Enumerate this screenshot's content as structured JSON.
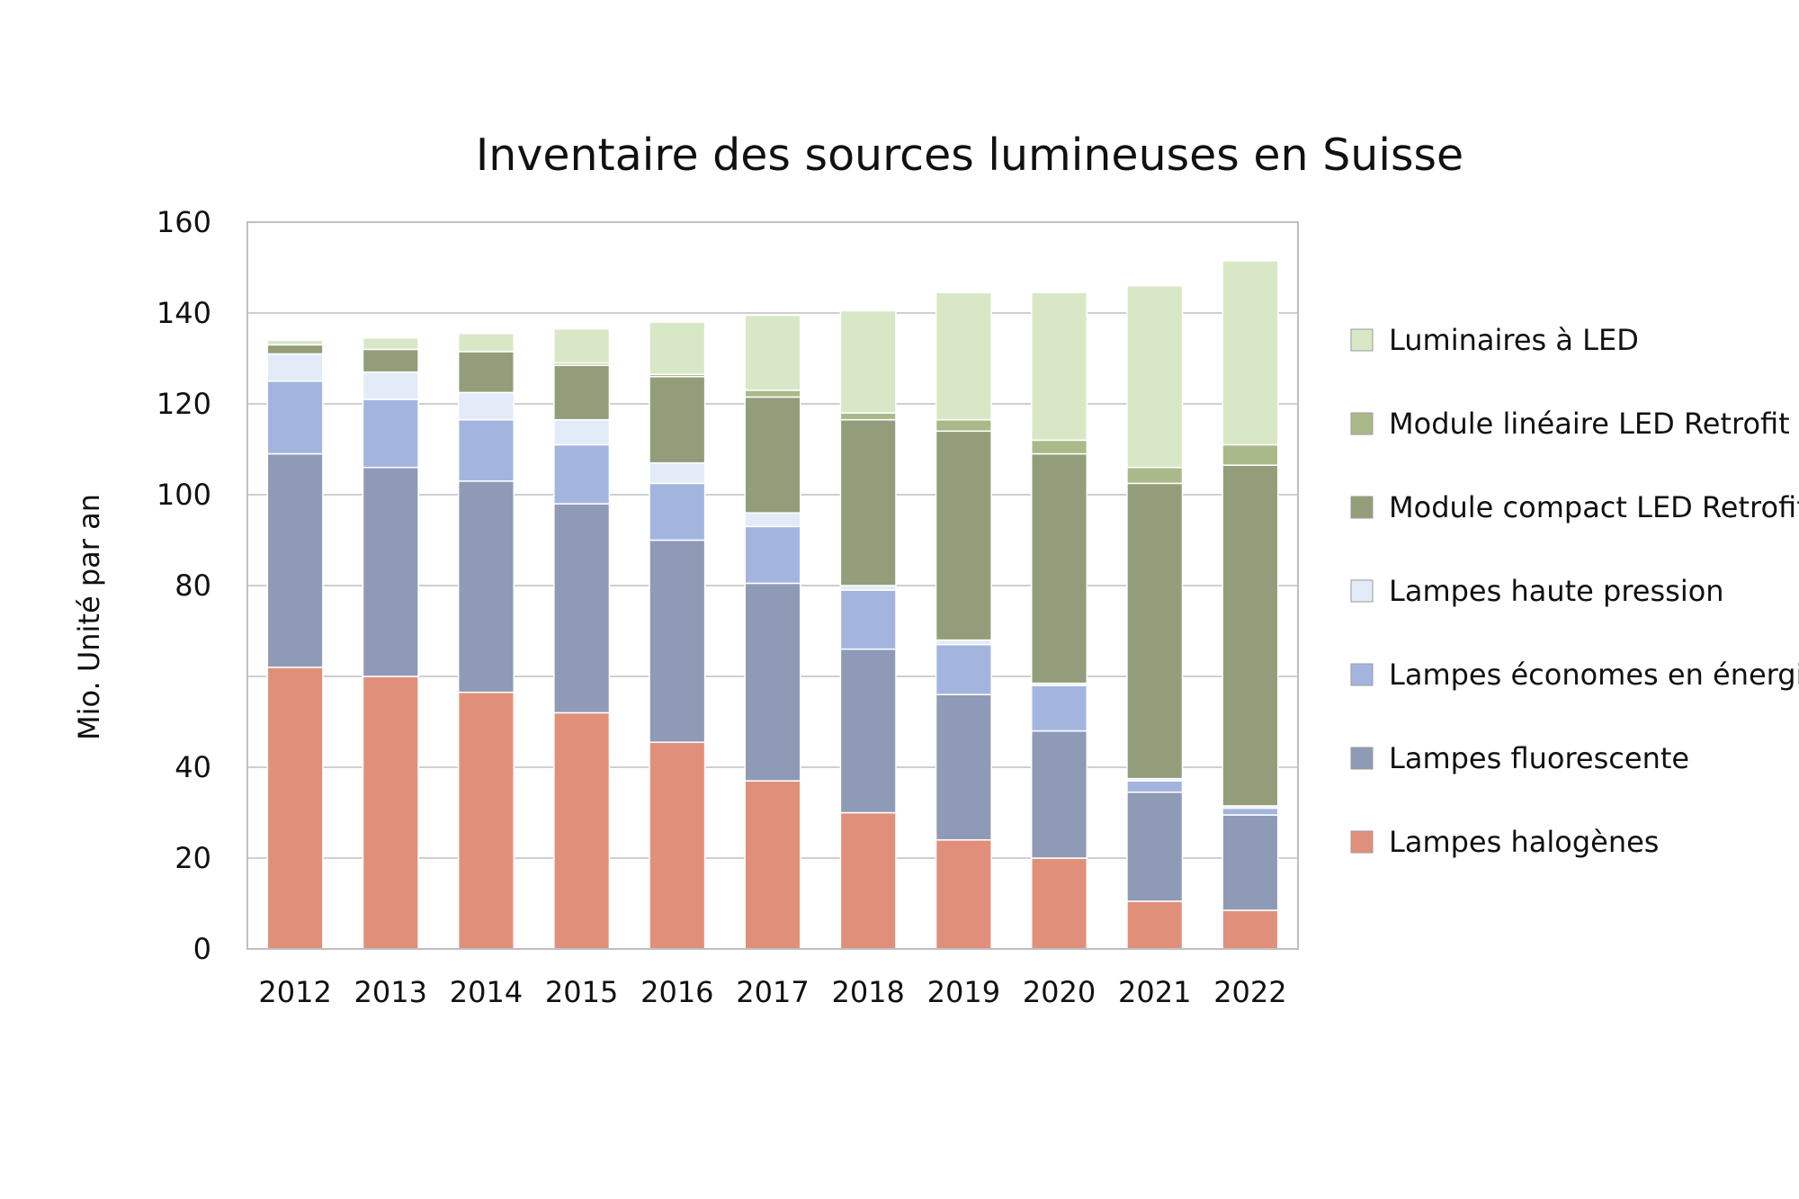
{
  "chart_data": {
    "type": "bar",
    "stacked": true,
    "title": "Inventaire des sources lumineuses en Suisse",
    "xlabel": "",
    "ylabel": "Mio. Unité par an",
    "ylim": [
      0,
      160
    ],
    "yticks": [
      "0",
      "20",
      "40",
      "",
      "80",
      "100",
      "120",
      "140",
      "160"
    ],
    "grid": true,
    "legend_position": "right",
    "categories": [
      "2012",
      "2013",
      "2014",
      "2015",
      "2016",
      "2017",
      "2018",
      "2019",
      "2020",
      "2021",
      "2022"
    ],
    "series": [
      {
        "name": "Lampes halogènes",
        "color": "#e0907a",
        "values": [
          62,
          60,
          56.5,
          52,
          45.5,
          37,
          30,
          24,
          20,
          10.5,
          8.5
        ]
      },
      {
        "name": "Lampes fluorescente",
        "color": "#8f9ab7",
        "values": [
          47,
          46,
          46.5,
          46,
          44.5,
          43.5,
          36,
          32,
          28,
          24,
          21
        ]
      },
      {
        "name": "Lampes économes en énergie",
        "color": "#a3b5df",
        "values": [
          16,
          15,
          13.5,
          13,
          12.5,
          12.5,
          13,
          11,
          10,
          2.5,
          1.5
        ]
      },
      {
        "name": "Lampes haute pression",
        "color": "#e3ebf8",
        "values": [
          6,
          6,
          6,
          5.5,
          4.5,
          3,
          1,
          1,
          0.5,
          0.5,
          0.5
        ]
      },
      {
        "name": "Module compact LED Retrofit",
        "color": "#949d79",
        "values": [
          2,
          5,
          9,
          12,
          19,
          25.5,
          36.5,
          46,
          50.5,
          65,
          75
        ]
      },
      {
        "name": "Module linéaire LED Retrofit",
        "color": "#a9b989",
        "values": [
          0,
          0,
          0,
          0.5,
          0.5,
          1.5,
          1.5,
          2.5,
          3,
          3.5,
          4.5
        ]
      },
      {
        "name": "Luminaires à LED",
        "color": "#d8e8c6",
        "values": [
          1,
          2.5,
          4,
          7.5,
          11.5,
          16.5,
          22.5,
          28,
          32.5,
          40,
          40.5
        ]
      }
    ],
    "axis_color": "#bfbfbf",
    "grid_color": "#bfbfbf"
  }
}
